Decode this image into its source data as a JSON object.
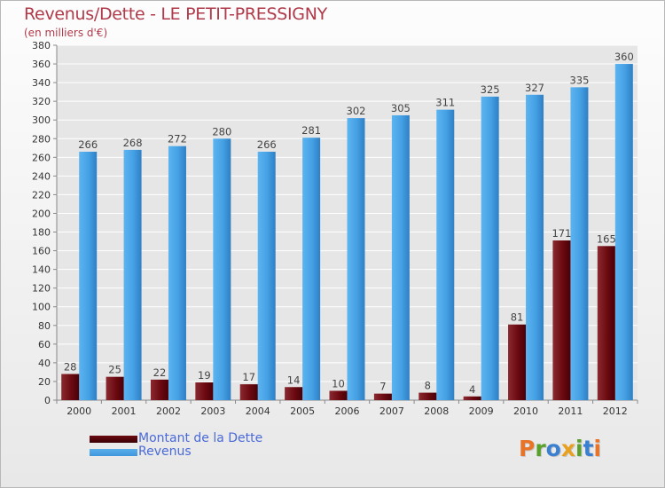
{
  "title": "Revenus/Dette - LE PETIT-PRESSIGNY",
  "subtitle": "(en milliers d'€)",
  "logo": {
    "text": "Proxiti",
    "letters": [
      {
        "ch": "P",
        "color": "#e8742a"
      },
      {
        "ch": "r",
        "color": "#5aa02c"
      },
      {
        "ch": "o",
        "color": "#3a7fd0"
      },
      {
        "ch": "x",
        "color": "#e8a020"
      },
      {
        "ch": "i",
        "color": "#5aa02c"
      },
      {
        "ch": "t",
        "color": "#3a7fd0"
      },
      {
        "ch": "i",
        "color": "#e8742a"
      }
    ]
  },
  "legend": [
    {
      "label": "Montant de la Dette",
      "color": "#6b0a10"
    },
    {
      "label": "Revenus",
      "color": "#3f96dc"
    }
  ],
  "chart_data": {
    "type": "bar",
    "title": "Revenus/Dette - LE PETIT-PRESSIGNY",
    "subtitle": "(en milliers d'€)",
    "xlabel": "",
    "ylabel": "",
    "ylim": [
      0,
      380
    ],
    "yticks": [
      0,
      20,
      40,
      60,
      80,
      100,
      120,
      140,
      160,
      180,
      200,
      220,
      240,
      260,
      280,
      300,
      320,
      340,
      360,
      380
    ],
    "grid": "horizontal",
    "legend_position": "bottom-left",
    "categories": [
      "2000",
      "2001",
      "2002",
      "2003",
      "2004",
      "2005",
      "2006",
      "2007",
      "2008",
      "2009",
      "2010",
      "2011",
      "2012"
    ],
    "series": [
      {
        "name": "Montant de la Dette",
        "color": "#6b0a10",
        "values": [
          28,
          25,
          22,
          19,
          17,
          14,
          10,
          7,
          8,
          4,
          81,
          171,
          165
        ]
      },
      {
        "name": "Revenus",
        "color": "#3f96dc",
        "values": [
          266,
          268,
          272,
          280,
          266,
          281,
          302,
          305,
          311,
          325,
          327,
          335,
          360
        ]
      }
    ]
  }
}
